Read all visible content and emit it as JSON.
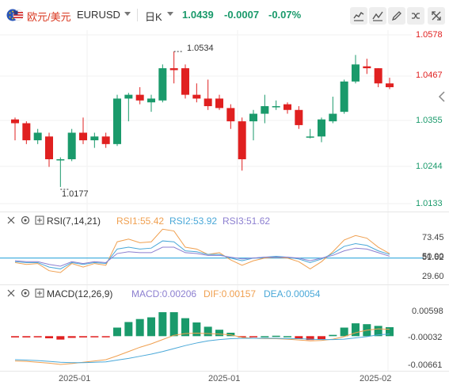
{
  "header": {
    "pair_cn": "欧元/美元",
    "pair_code": "EURUSD",
    "period": "日K",
    "price": "1.0439",
    "change": "-0.0007",
    "change_pct": "-0.07%",
    "icons": [
      "line-chart-icon",
      "indicator-icon",
      "draw-icon",
      "compare-icon",
      "fullscreen-icon"
    ]
  },
  "main_axis": {
    "labels": [
      "1.0578",
      "1.0467",
      "1.0355",
      "1.0244",
      "1.0133"
    ]
  },
  "annotations": {
    "high": "1.0534",
    "low": "1.0177"
  },
  "rsi": {
    "name": "RSI(7,14,21)",
    "rsi1": "RSI1:55.42",
    "rsi2": "RSI2:53.92",
    "rsi3": "RSI3:51.62",
    "axis": [
      "73.45",
      "50.00",
      "51.62",
      "29.60"
    ]
  },
  "macd": {
    "name": "MACD(12,26,9)",
    "macd": "MACD:0.00206",
    "dif": "DIF:0.00157",
    "dea": "DEA:0.00054",
    "axis": [
      "0.00598",
      "-0.00032",
      "-0.00661"
    ]
  },
  "dates": [
    "2025-01",
    "2025-01",
    "2025-02"
  ],
  "colors": {
    "up": "#1a9a6b",
    "down": "#e02020",
    "rsi1": "#f0a050",
    "rsi2": "#4aa8d8",
    "rsi3": "#8c7fd0",
    "dif": "#f0a050",
    "dea": "#4aa8d8",
    "baseline": "#1a9ed8"
  },
  "chart_data": {
    "type": "candlestick",
    "candles": [
      {
        "o": 1.0355,
        "h": 1.036,
        "l": 1.03,
        "c": 1.0345
      },
      {
        "o": 1.0345,
        "h": 1.035,
        "l": 1.029,
        "c": 1.03
      },
      {
        "o": 1.03,
        "h": 1.033,
        "l": 1.029,
        "c": 1.032
      },
      {
        "o": 1.031,
        "h": 1.032,
        "l": 1.023,
        "c": 1.025
      },
      {
        "o": 1.025,
        "h": 1.0255,
        "l": 1.0177,
        "c": 1.025
      },
      {
        "o": 1.025,
        "h": 1.033,
        "l": 1.0245,
        "c": 1.032
      },
      {
        "o": 1.032,
        "h": 1.036,
        "l": 1.029,
        "c": 1.03
      },
      {
        "o": 1.03,
        "h": 1.032,
        "l": 1.028,
        "c": 1.031
      },
      {
        "o": 1.031,
        "h": 1.032,
        "l": 1.028,
        "c": 1.029
      },
      {
        "o": 1.029,
        "h": 1.042,
        "l": 1.0285,
        "c": 1.041
      },
      {
        "o": 1.041,
        "h": 1.0425,
        "l": 1.035,
        "c": 1.042
      },
      {
        "o": 1.042,
        "h": 1.044,
        "l": 1.0395,
        "c": 1.0405
      },
      {
        "o": 1.04,
        "h": 1.042,
        "l": 1.0375,
        "c": 1.041
      },
      {
        "o": 1.0405,
        "h": 1.05,
        "l": 1.04,
        "c": 1.049
      },
      {
        "o": 1.049,
        "h": 1.0534,
        "l": 1.045,
        "c": 1.0485
      },
      {
        "o": 1.049,
        "h": 1.05,
        "l": 1.041,
        "c": 1.042
      },
      {
        "o": 1.042,
        "h": 1.045,
        "l": 1.04,
        "c": 1.041
      },
      {
        "o": 1.041,
        "h": 1.046,
        "l": 1.038,
        "c": 1.039
      },
      {
        "o": 1.041,
        "h": 1.042,
        "l": 1.038,
        "c": 1.0385
      },
      {
        "o": 1.0385,
        "h": 1.0395,
        "l": 1.033,
        "c": 1.035
      },
      {
        "o": 1.035,
        "h": 1.036,
        "l": 1.022,
        "c": 1.025
      },
      {
        "o": 1.035,
        "h": 1.038,
        "l": 1.03,
        "c": 1.037
      },
      {
        "o": 1.037,
        "h": 1.042,
        "l": 1.0345,
        "c": 1.039
      },
      {
        "o": 1.039,
        "h": 1.0405,
        "l": 1.038,
        "c": 1.039
      },
      {
        "o": 1.0395,
        "h": 1.04,
        "l": 1.037,
        "c": 1.038
      },
      {
        "o": 1.038,
        "h": 1.039,
        "l": 1.033,
        "c": 1.034
      },
      {
        "o": 1.031,
        "h": 1.033,
        "l": 1.0305,
        "c": 1.031
      },
      {
        "o": 1.031,
        "h": 1.036,
        "l": 1.0295,
        "c": 1.0355
      },
      {
        "o": 1.035,
        "h": 1.0415,
        "l": 1.0345,
        "c": 1.037
      },
      {
        "o": 1.0375,
        "h": 1.046,
        "l": 1.037,
        "c": 1.0455
      },
      {
        "o": 1.0455,
        "h": 1.0525,
        "l": 1.045,
        "c": 1.05
      },
      {
        "o": 1.0495,
        "h": 1.0515,
        "l": 1.0475,
        "c": 1.049
      },
      {
        "o": 1.049,
        "h": 1.049,
        "l": 1.044,
        "c": 1.045
      },
      {
        "o": 1.045,
        "h": 1.0465,
        "l": 1.0435,
        "c": 1.044
      }
    ],
    "rsi1": [
      45,
      43,
      44,
      36,
      34,
      44,
      40,
      44,
      42,
      68,
      71,
      67,
      68,
      82,
      80,
      62,
      60,
      54,
      56,
      48,
      42,
      47,
      50,
      51,
      50,
      46,
      38,
      46,
      57,
      70,
      75,
      72,
      62,
      55
    ],
    "rsi2": [
      46,
      45,
      45,
      40,
      38,
      45,
      43,
      45,
      44,
      60,
      62,
      60,
      61,
      69,
      68,
      58,
      57,
      54,
      54,
      50,
      47,
      50,
      51,
      52,
      51,
      49,
      45,
      49,
      55,
      63,
      66,
      64,
      58,
      54
    ],
    "rsi3": [
      47,
      46,
      46,
      43,
      41,
      46,
      44,
      46,
      45,
      55,
      57,
      56,
      56,
      62,
      62,
      56,
      55,
      53,
      53,
      51,
      49,
      50,
      51,
      51,
      51,
      50,
      47,
      50,
      53,
      58,
      61,
      60,
      56,
      52
    ],
    "macd_hist": [
      -0.0003,
      -0.0003,
      -0.0002,
      -0.0005,
      -0.0008,
      -0.0004,
      -0.0003,
      -0.0002,
      -0.0002,
      0.002,
      0.0033,
      0.004,
      0.0044,
      0.0056,
      0.0056,
      0.0042,
      0.0032,
      0.0022,
      0.0015,
      0.0008,
      -0.0002,
      -0.0001,
      0.0,
      0.0001,
      0.0,
      -0.0006,
      -0.0009,
      -0.0007,
      0.0003,
      0.002,
      0.003,
      0.0028,
      0.0024,
      0.0021
    ],
    "dif": [
      -0.0058,
      -0.0059,
      -0.0061,
      -0.0063,
      -0.0066,
      -0.0064,
      -0.0061,
      -0.0058,
      -0.0055,
      -0.0046,
      -0.0036,
      -0.0026,
      -0.0018,
      -0.0008,
      0.0002,
      0.0006,
      0.0007,
      0.0006,
      0.0005,
      0.0003,
      -0.0003,
      -0.0005,
      -0.0006,
      -0.0006,
      -0.0007,
      -0.0009,
      -0.0011,
      -0.001,
      -0.0007,
      -0.0001,
      0.0008,
      0.0014,
      0.0017,
      0.0016
    ],
    "dea": [
      -0.0055,
      -0.0056,
      -0.0057,
      -0.0059,
      -0.0061,
      -0.0062,
      -0.0062,
      -0.0061,
      -0.006,
      -0.0056,
      -0.0052,
      -0.0047,
      -0.0042,
      -0.0036,
      -0.0029,
      -0.0022,
      -0.0016,
      -0.0011,
      -0.0008,
      -0.0006,
      -0.0005,
      -0.0005,
      -0.0005,
      -0.0005,
      -0.0006,
      -0.0006,
      -0.0007,
      -0.0008,
      -0.0008,
      -0.0007,
      -0.0004,
      -0.0001,
      0.0003,
      0.0005
    ],
    "main_ylim": [
      1.0133,
      1.0578
    ],
    "rsi_ylim": [
      29.6,
      73.45
    ],
    "macd_ylim": [
      -0.00661,
      0.00598
    ]
  }
}
